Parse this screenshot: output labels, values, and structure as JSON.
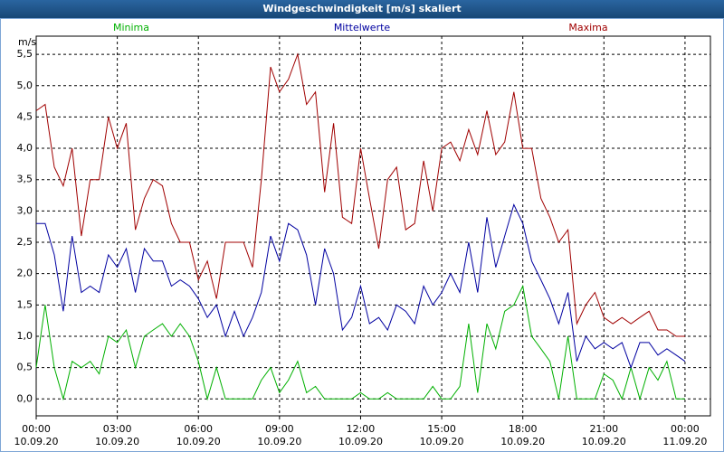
{
  "chart_data": {
    "type": "line",
    "title": "Windgeschwindigkeit [m/s] skaliert",
    "y_label": "m/s",
    "x": [
      0,
      0.33,
      0.67,
      1,
      1.33,
      1.67,
      2,
      2.33,
      2.67,
      3,
      3.33,
      3.67,
      4,
      4.33,
      4.67,
      5,
      5.33,
      5.67,
      6,
      6.33,
      6.67,
      7,
      7.33,
      7.67,
      8,
      8.33,
      8.67,
      9,
      9.33,
      9.67,
      10,
      10.33,
      10.67,
      11,
      11.33,
      11.67,
      12,
      12.33,
      12.67,
      13,
      13.33,
      13.67,
      14,
      14.33,
      14.67,
      15,
      15.33,
      15.67,
      16,
      16.33,
      16.67,
      17,
      17.33,
      17.67,
      18,
      18.33,
      18.67,
      19,
      19.33,
      19.67,
      20,
      20.33,
      20.67,
      21,
      21.33,
      21.67,
      22,
      22.33,
      22.67,
      23,
      23.33,
      23.67,
      24
    ],
    "series": [
      {
        "name": "Minima",
        "color": "#00b000",
        "values": [
          0.5,
          1.5,
          0.5,
          0.0,
          0.6,
          0.5,
          0.6,
          0.4,
          1.0,
          0.9,
          1.1,
          0.5,
          1.0,
          1.1,
          1.2,
          1.0,
          1.2,
          1.0,
          0.6,
          0.0,
          0.5,
          0.0,
          0.0,
          0.0,
          0.0,
          0.3,
          0.5,
          0.1,
          0.3,
          0.6,
          0.1,
          0.2,
          0.0,
          0.0,
          0.0,
          0.0,
          0.1,
          0.0,
          0.0,
          0.1,
          0.0,
          0.0,
          0.0,
          0.0,
          0.2,
          0.0,
          0.0,
          0.2,
          1.2,
          0.1,
          1.2,
          0.8,
          1.4,
          1.5,
          1.8,
          1.0,
          0.8,
          0.6,
          0.0,
          1.0,
          0.0,
          0.0,
          0.0,
          0.4,
          0.3,
          0.0,
          0.5,
          0.0,
          0.5,
          0.3,
          0.6,
          0.0,
          0.0
        ]
      },
      {
        "name": "Mittelwerte",
        "color": "#0000a0",
        "values": [
          2.8,
          2.8,
          2.3,
          1.4,
          2.6,
          1.7,
          1.8,
          1.7,
          2.3,
          2.1,
          2.4,
          1.7,
          2.4,
          2.2,
          2.2,
          1.8,
          1.9,
          1.8,
          1.6,
          1.3,
          1.5,
          1.0,
          1.4,
          1.0,
          1.3,
          1.7,
          2.6,
          2.2,
          2.8,
          2.7,
          2.3,
          1.5,
          2.4,
          2.0,
          1.1,
          1.3,
          1.8,
          1.2,
          1.3,
          1.1,
          1.5,
          1.4,
          1.2,
          1.8,
          1.5,
          1.7,
          2.0,
          1.7,
          2.5,
          1.7,
          2.9,
          2.1,
          2.6,
          3.1,
          2.8,
          2.2,
          1.9,
          1.6,
          1.2,
          1.7,
          0.6,
          1.0,
          0.8,
          0.9,
          0.8,
          0.9,
          0.5,
          0.9,
          0.9,
          0.7,
          0.8,
          0.7,
          0.6
        ]
      },
      {
        "name": "Maxima",
        "color": "#a00000",
        "values": [
          4.6,
          4.7,
          3.7,
          3.4,
          4.0,
          2.6,
          3.5,
          3.5,
          4.5,
          4.0,
          4.4,
          2.7,
          3.2,
          3.5,
          3.4,
          2.8,
          2.5,
          2.5,
          1.9,
          2.2,
          1.6,
          2.5,
          2.5,
          2.5,
          2.1,
          3.5,
          5.3,
          4.9,
          5.1,
          5.5,
          4.7,
          4.9,
          3.3,
          4.4,
          2.9,
          2.8,
          4.0,
          3.2,
          2.4,
          3.5,
          3.7,
          2.7,
          2.8,
          3.8,
          3.0,
          4.0,
          4.1,
          3.8,
          4.3,
          3.9,
          4.6,
          3.9,
          4.1,
          4.9,
          4.0,
          4.0,
          3.2,
          2.9,
          2.5,
          2.7,
          1.2,
          1.5,
          1.7,
          1.3,
          1.2,
          1.3,
          1.2,
          1.3,
          1.4,
          1.1,
          1.1,
          1.0,
          1.0
        ]
      }
    ],
    "xlim": [
      0,
      24.94
    ],
    "ylim": [
      -0.27,
      5.79
    ],
    "xticks": [
      {
        "value": 0,
        "label": "00:00 10.09.20"
      },
      {
        "value": 3,
        "label": "03:00 10.09.20"
      },
      {
        "value": 6,
        "label": "06:00 10.09.20"
      },
      {
        "value": 9,
        "label": "09:00 10.09.20"
      },
      {
        "value": 12,
        "label": "12:00 10.09.20"
      },
      {
        "value": 15,
        "label": "15:00 10.09.20"
      },
      {
        "value": 18,
        "label": "18:00 10.09.20"
      },
      {
        "value": 21,
        "label": "21:00 10.09.20"
      },
      {
        "value": 24,
        "label": "00:00 11.09.20"
      }
    ],
    "yticks": [
      {
        "value": 0,
        "label": "0,0"
      },
      {
        "value": 0.5,
        "label": "0,5"
      },
      {
        "value": 1,
        "label": "1,0"
      },
      {
        "value": 1.5,
        "label": "1,5"
      },
      {
        "value": 2,
        "label": "2,0"
      },
      {
        "value": 2.5,
        "label": "2,5"
      },
      {
        "value": 3,
        "label": "3,0"
      },
      {
        "value": 3.5,
        "label": "3,5"
      },
      {
        "value": 4,
        "label": "4,0"
      },
      {
        "value": 4.5,
        "label": "4,5"
      },
      {
        "value": 5,
        "label": "5,0"
      },
      {
        "value": 5.5,
        "label": "5,5"
      }
    ],
    "grid": true
  }
}
